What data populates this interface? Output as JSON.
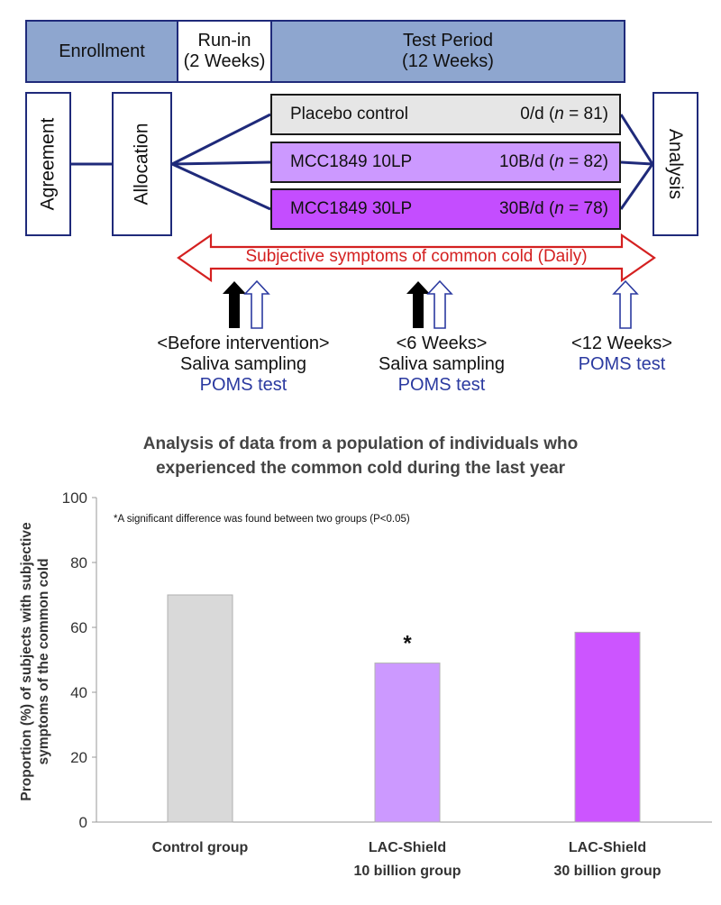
{
  "timeline": {
    "enrollment": "Enrollment",
    "runin_line1": "Run-in",
    "runin_line2": "(2 Weeks)",
    "test_line1": "Test Period",
    "test_line2": "(12 Weeks)"
  },
  "flow": {
    "agreement": "Agreement",
    "allocation": "Allocation",
    "analysis": "Analysis",
    "arms": [
      {
        "name": "Placebo control",
        "dose": "0/d",
        "n": "81",
        "color": "#e6e6e6"
      },
      {
        "name": "MCC1849 10LP",
        "dose": "10B/d",
        "n": "82",
        "color": "#cc99ff"
      },
      {
        "name": "MCC1849 30LP",
        "dose": "30B/d",
        "n": "78",
        "color": "#c44dff"
      }
    ],
    "n_label": "n"
  },
  "symptoms_arrow": "Subjective symptoms of common cold (Daily)",
  "timepoints": [
    {
      "header": "<Before intervention>",
      "saliva": "Saliva sampling",
      "poms": "POMS test"
    },
    {
      "header": "<6 Weeks>",
      "saliva": "Saliva sampling",
      "poms": "POMS test"
    },
    {
      "header": "<12 Weeks>",
      "poms": "POMS test"
    }
  ],
  "colors": {
    "navy": "#1f2a7a",
    "red": "#d42020",
    "poms": "#2b3aa0"
  },
  "chart_data": {
    "type": "bar",
    "title_line1": "Analysis of data from a population of individuals who",
    "title_line2": "experienced the common cold during the last year",
    "ylabel_line1": "Proportion (%) of subjects with subjective",
    "ylabel_line2": "symptoms of the common cold",
    "xlabel": "",
    "ylim": [
      0,
      100
    ],
    "yticks": [
      0,
      20,
      40,
      60,
      80,
      100
    ],
    "categories": [
      {
        "line1": "Control group",
        "line2": ""
      },
      {
        "line1": "LAC-Shield",
        "line2": "10 billion group"
      },
      {
        "line1": "LAC-Shield",
        "line2": "30 billion group"
      }
    ],
    "values": [
      70,
      49,
      58.5
    ],
    "bar_colors": [
      "#d9d9d9",
      "#cc99ff",
      "#cc55ff"
    ],
    "significance_marks": [
      "",
      "*",
      ""
    ],
    "note": "*A significant difference was found between two groups (P<0.05)",
    "grid": false
  }
}
